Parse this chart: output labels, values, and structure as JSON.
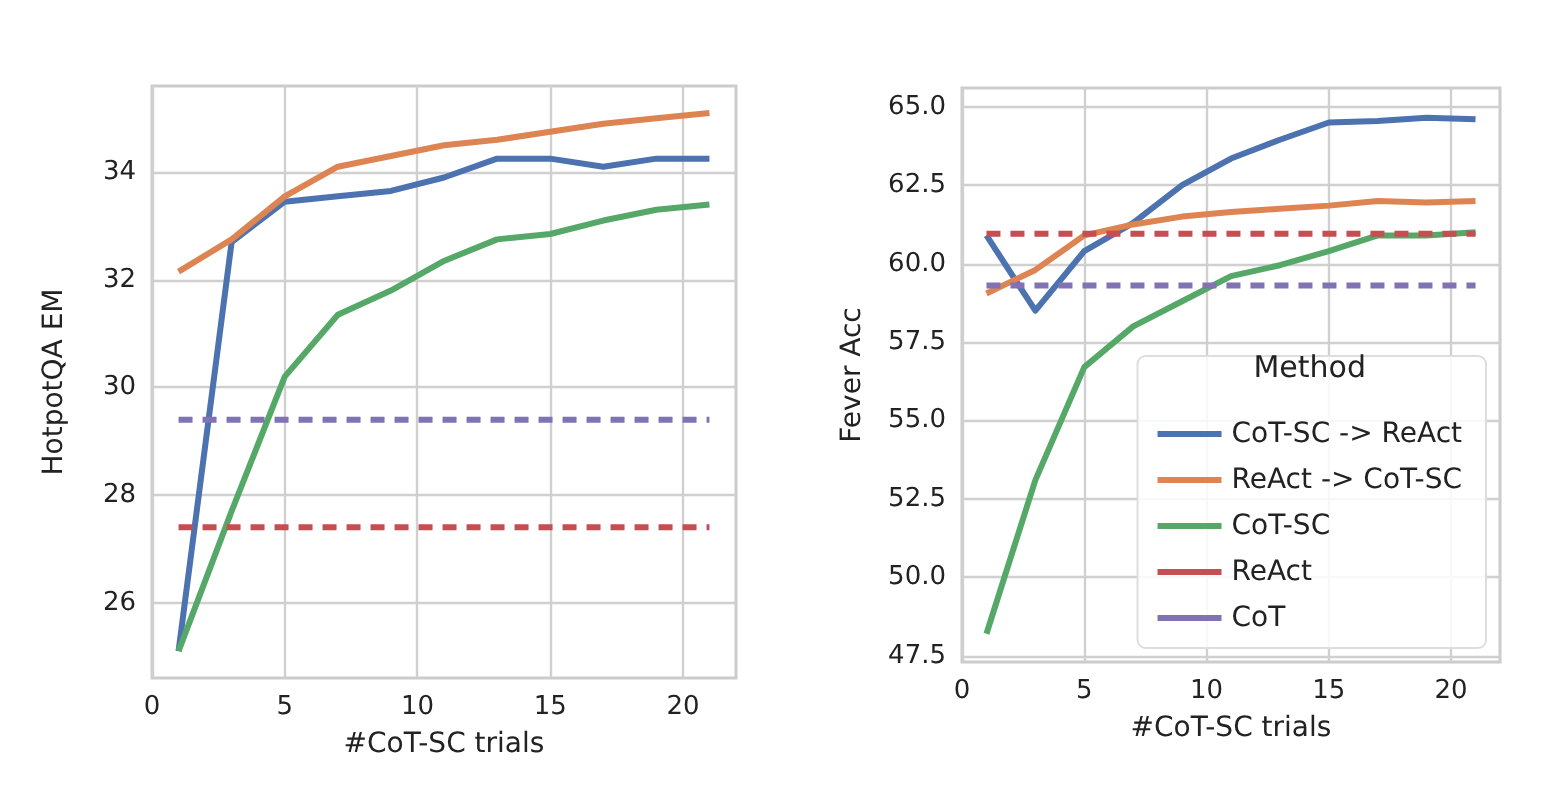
{
  "chart_data": [
    {
      "type": "line",
      "xlabel": "#CoT-SC trials",
      "ylabel": "HotpotQA EM",
      "x": [
        1,
        3,
        5,
        7,
        9,
        11,
        13,
        15,
        17,
        19,
        21
      ],
      "xlim": [
        0,
        22
      ],
      "xticks": [
        0,
        5,
        10,
        15,
        20
      ],
      "ylim": [
        24.6,
        35.6
      ],
      "yticks": [
        26,
        28,
        30,
        32,
        34
      ],
      "grid": true,
      "marker": "none",
      "line_style": "solid",
      "series": [
        {
          "color": "#4c72b0",
          "values": [
            25.1,
            32.7,
            33.45,
            33.55,
            33.65,
            33.9,
            34.25,
            34.25,
            34.1,
            34.25,
            34.25
          ]
        },
        {
          "color": "#dd8452",
          "values": [
            32.15,
            32.75,
            33.55,
            34.1,
            34.3,
            34.5,
            34.6,
            34.75,
            34.9,
            35.0,
            35.1
          ]
        },
        {
          "color": "#55a868",
          "values": [
            25.1,
            27.7,
            30.2,
            31.35,
            31.8,
            32.35,
            32.75,
            32.85,
            33.1,
            33.3,
            33.4
          ]
        },
        {
          "color": "#c44e52",
          "values": [
            27.4,
            27.4,
            27.4,
            27.4,
            27.4,
            27.4,
            27.4,
            27.4,
            27.4,
            27.4,
            27.4
          ],
          "line_style": "dashed"
        },
        {
          "color": "#8172b3",
          "values": [
            29.4,
            29.4,
            29.4,
            29.4,
            29.4,
            29.4,
            29.4,
            29.4,
            29.4,
            29.4,
            29.4
          ],
          "line_style": "dashed"
        }
      ]
    },
    {
      "type": "line",
      "xlabel": "#CoT-SC trials",
      "ylabel": "Fever Acc",
      "legend_title": "Method",
      "legend": "bottom right",
      "x": [
        1,
        3,
        5,
        7,
        9,
        11,
        13,
        15,
        17,
        19,
        21
      ],
      "xlim": [
        0,
        22
      ],
      "xticks": [
        0,
        5,
        10,
        15,
        20
      ],
      "ylim": [
        47.3,
        65.6
      ],
      "yticks": [
        {
          "value": 47.5,
          "label": "47.5"
        },
        {
          "value": 50,
          "label": "50.0"
        },
        {
          "value": 52.5,
          "label": "52.5"
        },
        {
          "value": 55,
          "label": "55.0"
        },
        {
          "value": 57.5,
          "label": "57.5"
        },
        {
          "value": 60,
          "label": "60.0"
        },
        {
          "value": 62.5,
          "label": "62.5"
        },
        {
          "value": 65,
          "label": "65.0"
        }
      ],
      "grid": true,
      "marker": "none",
      "line_style": "solid",
      "series": [
        {
          "name": "CoT-SC -> ReAct",
          "color": "#4c72b0",
          "values": [
            60.9,
            58.5,
            60.4,
            61.3,
            62.5,
            63.35,
            63.95,
            64.5,
            64.55,
            64.65,
            64.6
          ]
        },
        {
          "name": "ReAct -> CoT-SC",
          "color": "#dd8452",
          "values": [
            59.05,
            59.8,
            60.9,
            61.25,
            61.5,
            61.65,
            61.75,
            61.85,
            62.0,
            61.95,
            62.0
          ]
        },
        {
          "name": "CoT-SC",
          "color": "#55a868",
          "values": [
            48.2,
            53.1,
            56.7,
            58.0,
            58.8,
            59.6,
            59.95,
            60.4,
            60.9,
            60.9,
            61.0
          ]
        },
        {
          "name": "ReAct",
          "color": "#c44e52",
          "values": [
            60.95,
            60.95,
            60.95,
            60.95,
            60.95,
            60.95,
            60.95,
            60.95,
            60.95,
            60.95,
            60.95
          ],
          "line_style": "dashed"
        },
        {
          "name": "CoT",
          "color": "#8172b3",
          "values": [
            59.3,
            59.3,
            59.3,
            59.3,
            59.3,
            59.3,
            59.3,
            59.3,
            59.3,
            59.3,
            59.3
          ],
          "line_style": "dashed"
        }
      ]
    }
  ]
}
